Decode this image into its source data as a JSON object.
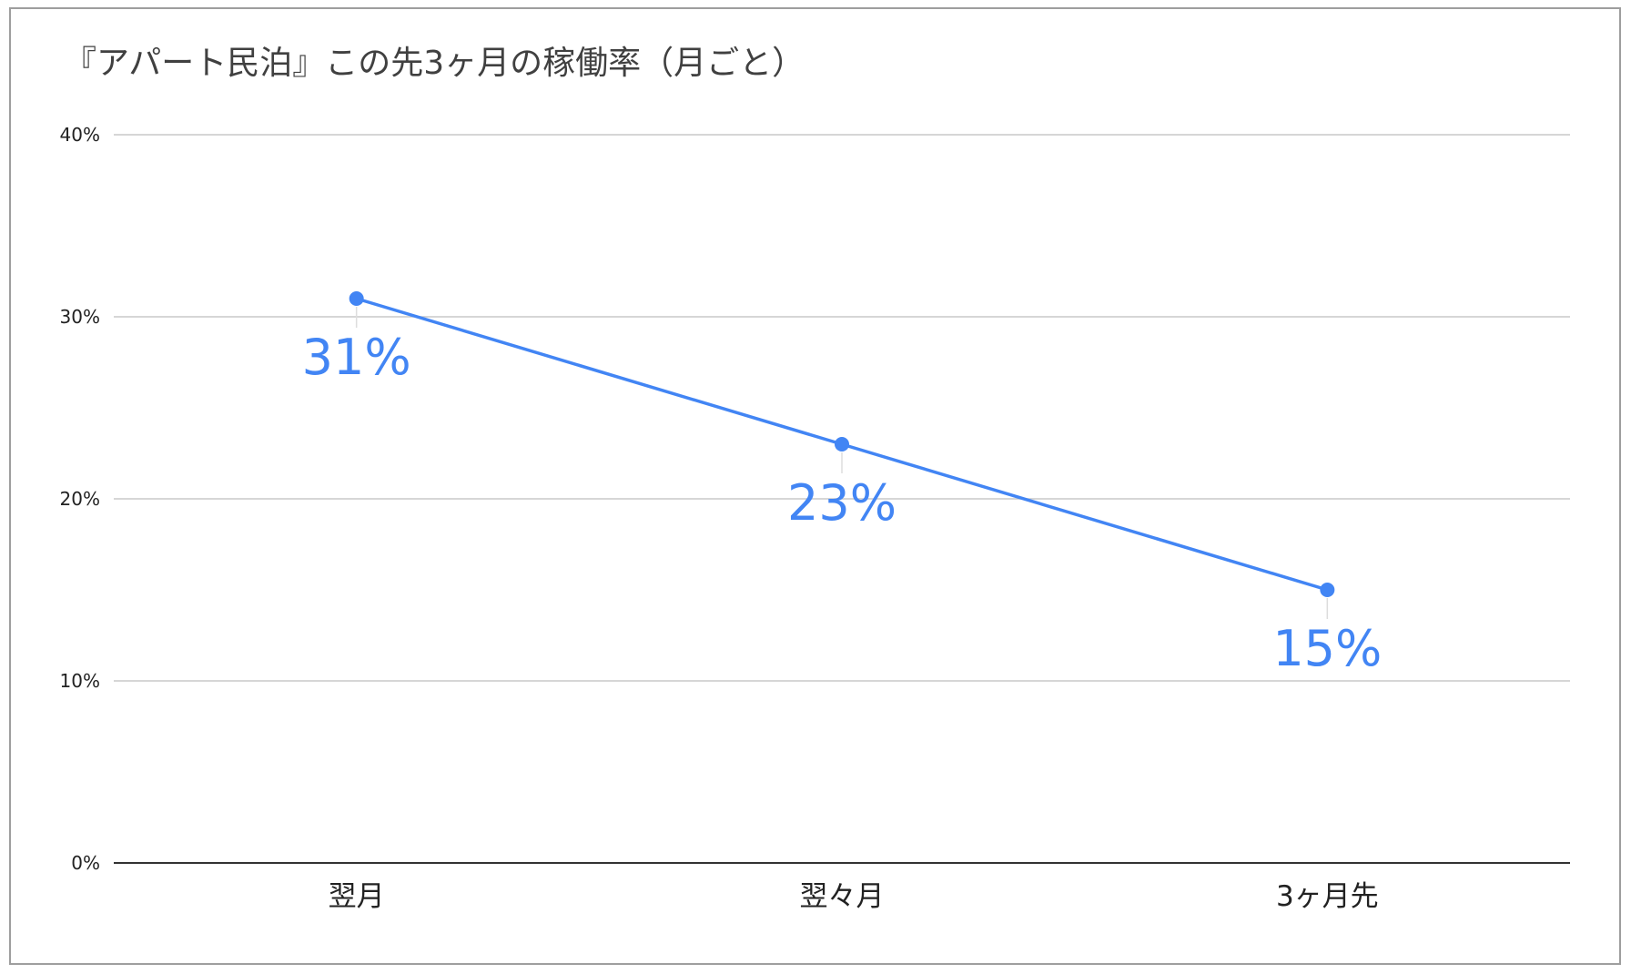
{
  "chart_data": {
    "type": "line",
    "title": "『アパート民泊』この先3ヶ月の稼働率（月ごと）",
    "xlabel": "",
    "ylabel": "",
    "categories": [
      "翌月",
      "翌々月",
      "3ヶ月先"
    ],
    "series": [
      {
        "values": [
          31,
          23,
          15
        ],
        "data_labels": [
          "31%",
          "23%",
          "15%"
        ],
        "color": "#4285f4"
      }
    ],
    "ylim": [
      0,
      40
    ],
    "yticks": [
      0,
      10,
      20,
      30,
      40
    ],
    "ytick_labels": [
      "0%",
      "10%",
      "20%",
      "30%",
      "40%"
    ],
    "grid": true,
    "legend": "none"
  }
}
